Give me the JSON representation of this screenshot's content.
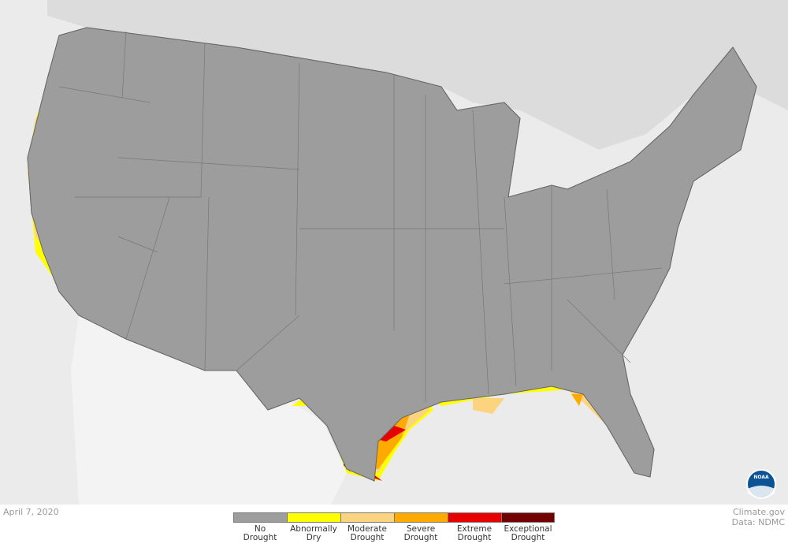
{
  "date": "April 7, 2020",
  "legend": {
    "items": [
      {
        "label": "No Drought",
        "color": "#9d9d9d"
      },
      {
        "label": "Abnormally Dry",
        "color": "#ffff00"
      },
      {
        "label": "Moderate Drought",
        "color": "#fcd37f"
      },
      {
        "label": "Severe Drought",
        "color": "#ffaa00"
      },
      {
        "label": "Extreme Drought",
        "color": "#e60000"
      },
      {
        "label": "Exceptional Drought",
        "color": "#730000"
      }
    ]
  },
  "credit": {
    "source": "Climate.gov",
    "data": "Data: NDMC"
  },
  "logo": "NOAA"
}
